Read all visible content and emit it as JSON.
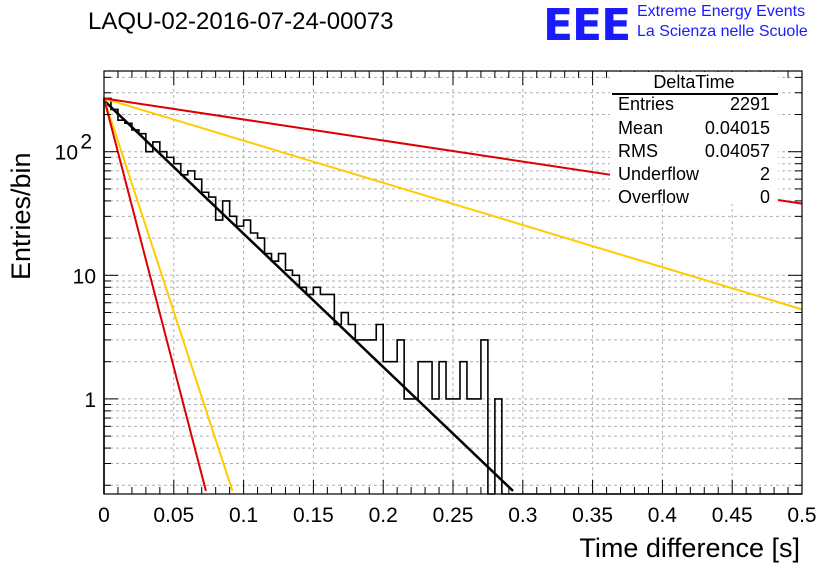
{
  "header": {
    "title": "LAQU-02-2016-07-24-00073",
    "logo_text": "EEE",
    "brand_line1": "Extreme Energy Events",
    "brand_line2": "La Scienza nelle Scuole",
    "brand_color": "#1a1aff"
  },
  "stats": {
    "title": "DeltaTime",
    "rows": [
      {
        "label": "Entries",
        "value": "2291"
      },
      {
        "label": "Mean",
        "value": "0.04015"
      },
      {
        "label": "RMS",
        "value": "0.04057"
      },
      {
        "label": "Underflow",
        "value": "2"
      },
      {
        "label": "Overflow",
        "value": "0"
      }
    ]
  },
  "chart_data": {
    "type": "histogram",
    "xlabel": "Time difference [s]",
    "ylabel": "Entries/bin",
    "xlim": [
      0,
      0.5
    ],
    "ylim": [
      0.17,
      450
    ],
    "y_scale": "log",
    "grid": true,
    "x_ticks": [
      "0",
      "0.05",
      "0.1",
      "0.15",
      "0.2",
      "0.25",
      "0.3",
      "0.35",
      "0.4",
      "0.45",
      "0.5"
    ],
    "y_ticks": [
      {
        "value": 1,
        "label": "1"
      },
      {
        "value": 10,
        "label": "10"
      },
      {
        "value": 100,
        "label": "10",
        "exp": "2"
      }
    ],
    "bin_width": 0.005,
    "histogram_values": [
      270,
      220,
      180,
      170,
      150,
      140,
      100,
      120,
      100,
      90,
      80,
      65,
      70,
      60,
      47,
      43,
      28,
      40,
      30,
      25,
      28,
      22,
      20,
      15,
      13,
      15,
      11,
      10,
      8,
      7,
      8,
      7,
      7,
      4,
      5,
      4,
      3,
      3,
      3,
      4,
      2,
      2,
      3,
      1,
      1,
      2,
      2,
      1,
      2,
      1,
      1,
      2,
      1,
      1,
      3,
      0,
      1,
      0,
      0,
      0,
      0,
      0,
      0,
      0,
      0,
      0,
      0,
      0,
      0,
      0,
      0,
      0,
      0,
      0,
      0,
      0,
      0,
      0,
      0,
      0,
      0,
      0,
      0,
      0,
      0,
      0,
      0,
      0,
      0,
      0,
      0,
      0,
      0,
      0,
      0,
      0,
      0,
      0,
      0,
      0
    ],
    "fit_lines": [
      {
        "color": "#000000",
        "x": [
          0.0,
          0.293
        ],
        "y": [
          260,
          0.18
        ]
      },
      {
        "color": "#ffcc00",
        "x": [
          0.0,
          0.5
        ],
        "y": [
          270,
          5.3
        ]
      },
      {
        "color": "#ffcc00",
        "x": [
          0.0,
          0.092
        ],
        "y": [
          270,
          0.18
        ]
      },
      {
        "color": "#dd0000",
        "x": [
          0.0,
          0.5
        ],
        "y": [
          270,
          38
        ]
      },
      {
        "color": "#dd0000",
        "x": [
          0.0,
          0.073
        ],
        "y": [
          270,
          0.18
        ]
      }
    ]
  }
}
